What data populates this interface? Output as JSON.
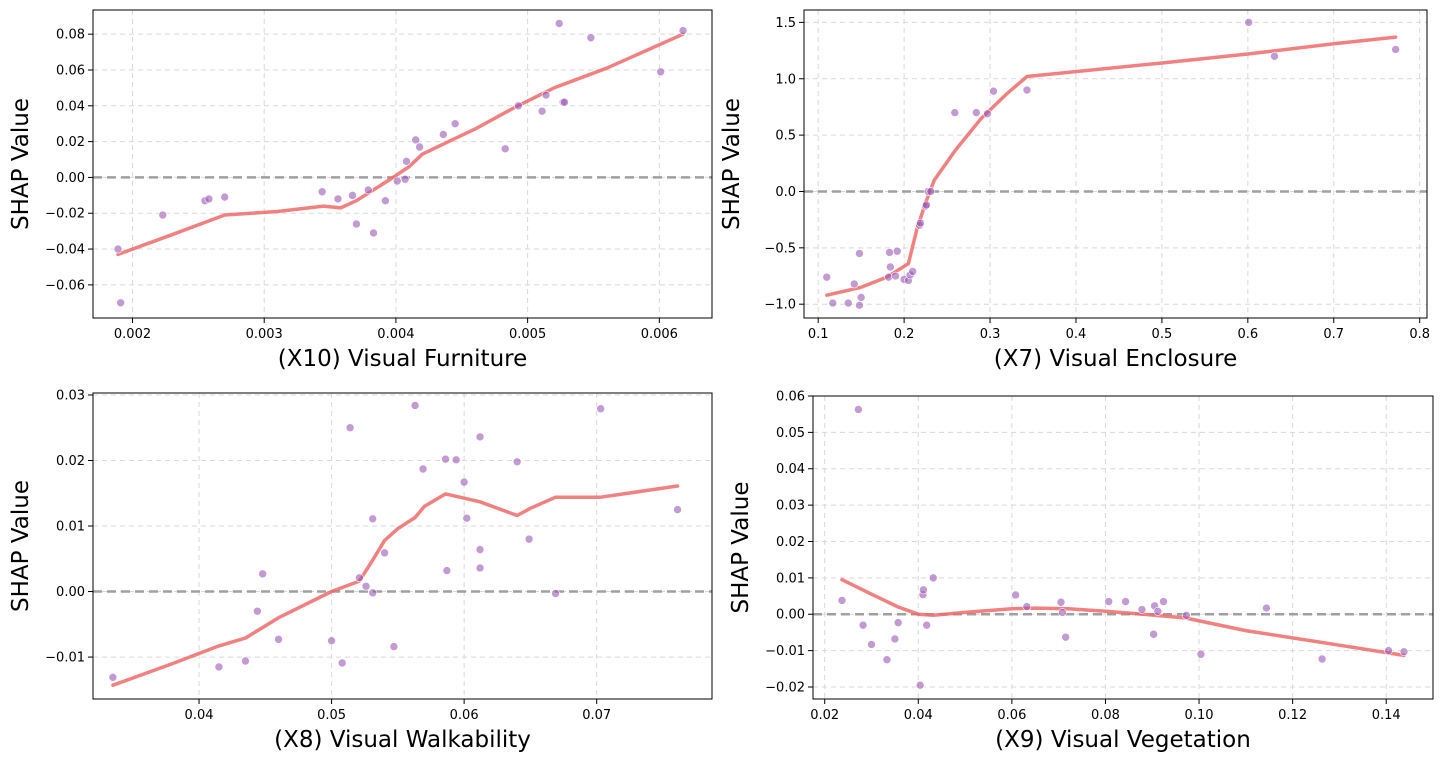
{
  "chart_data": [
    {
      "type": "scatter",
      "xlabel": "(X10) Visual Furniture",
      "ylabel": "SHAP Value",
      "xlim": [
        0.0017,
        0.0064
      ],
      "ylim": [
        -0.0785,
        0.0935
      ],
      "xticks": [
        0.002,
        0.003,
        0.004,
        0.005,
        0.006
      ],
      "xtick_labels": [
        "0.002",
        "0.003",
        "0.004",
        "0.005",
        "0.006"
      ],
      "yticks": [
        -0.06,
        -0.04,
        -0.02,
        0.0,
        0.02,
        0.04,
        0.06,
        0.08
      ],
      "ytick_labels": [
        "−0.06",
        "−0.04",
        "−0.02",
        "0.00",
        "0.02",
        "0.04",
        "0.06",
        "0.08"
      ],
      "grid": true,
      "zero_line": true,
      "points": [
        {
          "x": 0.00189,
          "y": -0.04
        },
        {
          "x": 0.00191,
          "y": -0.07
        },
        {
          "x": 0.00223,
          "y": -0.021
        },
        {
          "x": 0.00255,
          "y": -0.013
        },
        {
          "x": 0.00258,
          "y": -0.012
        },
        {
          "x": 0.0027,
          "y": -0.011
        },
        {
          "x": 0.00344,
          "y": -0.008
        },
        {
          "x": 0.00356,
          "y": -0.012
        },
        {
          "x": 0.00367,
          "y": -0.01
        },
        {
          "x": 0.0037,
          "y": -0.026
        },
        {
          "x": 0.00379,
          "y": -0.007
        },
        {
          "x": 0.00383,
          "y": -0.031
        },
        {
          "x": 0.00392,
          "y": -0.013
        },
        {
          "x": 0.00401,
          "y": -0.002
        },
        {
          "x": 0.00407,
          "y": -0.001
        },
        {
          "x": 0.00408,
          "y": 0.009
        },
        {
          "x": 0.00415,
          "y": 0.021
        },
        {
          "x": 0.00418,
          "y": 0.017
        },
        {
          "x": 0.00436,
          "y": 0.024
        },
        {
          "x": 0.00445,
          "y": 0.03
        },
        {
          "x": 0.00483,
          "y": 0.016
        },
        {
          "x": 0.00493,
          "y": 0.04
        },
        {
          "x": 0.00511,
          "y": 0.037
        },
        {
          "x": 0.00514,
          "y": 0.046
        },
        {
          "x": 0.00524,
          "y": 0.086
        },
        {
          "x": 0.00527,
          "y": 0.042
        },
        {
          "x": 0.00528,
          "y": 0.042
        },
        {
          "x": 0.00548,
          "y": 0.078
        },
        {
          "x": 0.00601,
          "y": 0.059
        },
        {
          "x": 0.00618,
          "y": 0.082
        }
      ],
      "trend": [
        {
          "x": 0.00189,
          "y": -0.043
        },
        {
          "x": 0.0023,
          "y": -0.032
        },
        {
          "x": 0.0027,
          "y": -0.021
        },
        {
          "x": 0.0031,
          "y": -0.019
        },
        {
          "x": 0.00345,
          "y": -0.016
        },
        {
          "x": 0.00358,
          "y": -0.017
        },
        {
          "x": 0.0037,
          "y": -0.013
        },
        {
          "x": 0.00385,
          "y": -0.006
        },
        {
          "x": 0.004,
          "y": 0.001
        },
        {
          "x": 0.0041,
          "y": 0.006
        },
        {
          "x": 0.0042,
          "y": 0.013
        },
        {
          "x": 0.0044,
          "y": 0.02
        },
        {
          "x": 0.0046,
          "y": 0.027
        },
        {
          "x": 0.0049,
          "y": 0.039
        },
        {
          "x": 0.0052,
          "y": 0.05
        },
        {
          "x": 0.0056,
          "y": 0.061
        },
        {
          "x": 0.00618,
          "y": 0.08
        }
      ]
    },
    {
      "type": "scatter",
      "xlabel": "(X7) Visual Enclosure",
      "ylabel": "SHAP Value",
      "xlim": [
        0.0835,
        0.8085
      ],
      "ylim": [
        -1.1225,
        1.61
      ],
      "xticks": [
        0.1,
        0.2,
        0.3,
        0.4,
        0.5,
        0.6,
        0.7,
        0.8
      ],
      "xtick_labels": [
        "0.1",
        "0.2",
        "0.3",
        "0.4",
        "0.5",
        "0.6",
        "0.7",
        "0.8"
      ],
      "yticks": [
        -1.0,
        -0.5,
        0.0,
        0.5,
        1.0,
        1.5
      ],
      "ytick_labels": [
        "−1.0",
        "−0.5",
        "0.0",
        "0.5",
        "1.0",
        "1.5"
      ],
      "grid": true,
      "zero_line": true,
      "points": [
        {
          "x": 0.11,
          "y": -0.76
        },
        {
          "x": 0.117,
          "y": -0.99
        },
        {
          "x": 0.135,
          "y": -0.99
        },
        {
          "x": 0.142,
          "y": -0.82
        },
        {
          "x": 0.148,
          "y": -1.01
        },
        {
          "x": 0.148,
          "y": -0.55
        },
        {
          "x": 0.15,
          "y": -0.94
        },
        {
          "x": 0.182,
          "y": -0.76
        },
        {
          "x": 0.183,
          "y": -0.54
        },
        {
          "x": 0.184,
          "y": -0.67
        },
        {
          "x": 0.19,
          "y": -0.75
        },
        {
          "x": 0.192,
          "y": -0.53
        },
        {
          "x": 0.2,
          "y": -0.78
        },
        {
          "x": 0.205,
          "y": -0.79
        },
        {
          "x": 0.207,
          "y": -0.74
        },
        {
          "x": 0.21,
          "y": -0.71
        },
        {
          "x": 0.218,
          "y": -0.3
        },
        {
          "x": 0.219,
          "y": -0.28
        },
        {
          "x": 0.225,
          "y": -0.13
        },
        {
          "x": 0.226,
          "y": -0.12
        },
        {
          "x": 0.228,
          "y": 0.0
        },
        {
          "x": 0.231,
          "y": 0.0
        },
        {
          "x": 0.259,
          "y": 0.7
        },
        {
          "x": 0.284,
          "y": 0.7
        },
        {
          "x": 0.297,
          "y": 0.69
        },
        {
          "x": 0.304,
          "y": 0.89
        },
        {
          "x": 0.343,
          "y": 0.9
        },
        {
          "x": 0.601,
          "y": 1.5
        },
        {
          "x": 0.631,
          "y": 1.2
        },
        {
          "x": 0.772,
          "y": 1.26
        }
      ],
      "trend": [
        {
          "x": 0.11,
          "y": -0.92
        },
        {
          "x": 0.15,
          "y": -0.85
        },
        {
          "x": 0.18,
          "y": -0.76
        },
        {
          "x": 0.205,
          "y": -0.64
        },
        {
          "x": 0.215,
          "y": -0.33
        },
        {
          "x": 0.225,
          "y": -0.1
        },
        {
          "x": 0.235,
          "y": 0.1
        },
        {
          "x": 0.26,
          "y": 0.37
        },
        {
          "x": 0.29,
          "y": 0.65
        },
        {
          "x": 0.32,
          "y": 0.87
        },
        {
          "x": 0.343,
          "y": 1.02
        },
        {
          "x": 0.5,
          "y": 1.14
        },
        {
          "x": 0.6,
          "y": 1.22
        },
        {
          "x": 0.7,
          "y": 1.31
        },
        {
          "x": 0.772,
          "y": 1.37
        }
      ]
    },
    {
      "type": "scatter",
      "xlabel": "(X8) Visual Walkability",
      "ylabel": "SHAP Value",
      "xlim": [
        0.032,
        0.0787
      ],
      "ylim": [
        -0.0164,
        0.0303
      ],
      "xticks": [
        0.04,
        0.05,
        0.06,
        0.07
      ],
      "xtick_labels": [
        "0.04",
        "0.05",
        "0.06",
        "0.07"
      ],
      "yticks": [
        -0.01,
        0.0,
        0.01,
        0.02,
        0.03
      ],
      "ytick_labels": [
        "−0.01",
        "0.00",
        "0.01",
        "0.02",
        "0.03"
      ],
      "grid": true,
      "zero_line": true,
      "points": [
        {
          "x": 0.0335,
          "y": -0.0131
        },
        {
          "x": 0.0415,
          "y": -0.0115
        },
        {
          "x": 0.0435,
          "y": -0.0106
        },
        {
          "x": 0.0444,
          "y": -0.003
        },
        {
          "x": 0.0448,
          "y": 0.0027
        },
        {
          "x": 0.046,
          "y": -0.0073
        },
        {
          "x": 0.05,
          "y": -0.0075
        },
        {
          "x": 0.0508,
          "y": -0.0109
        },
        {
          "x": 0.0514,
          "y": 0.025
        },
        {
          "x": 0.0521,
          "y": 0.0021
        },
        {
          "x": 0.0526,
          "y": 0.0008
        },
        {
          "x": 0.0531,
          "y": -0.0002
        },
        {
          "x": 0.0531,
          "y": 0.0111
        },
        {
          "x": 0.054,
          "y": 0.0059
        },
        {
          "x": 0.0547,
          "y": -0.0084
        },
        {
          "x": 0.0563,
          "y": 0.0284
        },
        {
          "x": 0.0569,
          "y": 0.0187
        },
        {
          "x": 0.0586,
          "y": 0.0202
        },
        {
          "x": 0.0587,
          "y": 0.0032
        },
        {
          "x": 0.0594,
          "y": 0.0201
        },
        {
          "x": 0.06,
          "y": 0.0167
        },
        {
          "x": 0.0602,
          "y": 0.0112
        },
        {
          "x": 0.0612,
          "y": 0.0236
        },
        {
          "x": 0.0612,
          "y": 0.0064
        },
        {
          "x": 0.0612,
          "y": 0.0036
        },
        {
          "x": 0.064,
          "y": 0.0198
        },
        {
          "x": 0.0649,
          "y": 0.008
        },
        {
          "x": 0.0669,
          "y": -0.0003
        },
        {
          "x": 0.0703,
          "y": 0.0279
        },
        {
          "x": 0.0761,
          "y": 0.0125
        }
      ],
      "trend": [
        {
          "x": 0.0335,
          "y": -0.0143
        },
        {
          "x": 0.038,
          "y": -0.011
        },
        {
          "x": 0.0415,
          "y": -0.0083
        },
        {
          "x": 0.0435,
          "y": -0.0071
        },
        {
          "x": 0.046,
          "y": -0.004
        },
        {
          "x": 0.05,
          "y": 0.0
        },
        {
          "x": 0.0521,
          "y": 0.0016
        },
        {
          "x": 0.0531,
          "y": 0.0048
        },
        {
          "x": 0.054,
          "y": 0.0078
        },
        {
          "x": 0.055,
          "y": 0.0096
        },
        {
          "x": 0.0563,
          "y": 0.0113
        },
        {
          "x": 0.057,
          "y": 0.013
        },
        {
          "x": 0.0586,
          "y": 0.0149
        },
        {
          "x": 0.0612,
          "y": 0.0137
        },
        {
          "x": 0.064,
          "y": 0.0116
        },
        {
          "x": 0.065,
          "y": 0.0127
        },
        {
          "x": 0.0669,
          "y": 0.0144
        },
        {
          "x": 0.0703,
          "y": 0.0144
        },
        {
          "x": 0.0761,
          "y": 0.0161
        }
      ]
    },
    {
      "type": "scatter",
      "xlabel": "(X9) Visual Vegetation",
      "ylabel": "SHAP Value",
      "xlim": [
        0.0175,
        0.15
      ],
      "ylim": [
        -0.0233,
        0.06
      ],
      "xticks": [
        0.02,
        0.04,
        0.06,
        0.08,
        0.1,
        0.12,
        0.14
      ],
      "xtick_labels": [
        "0.02",
        "0.04",
        "0.06",
        "0.08",
        "0.10",
        "0.12",
        "0.14"
      ],
      "yticks": [
        -0.02,
        -0.01,
        0.0,
        0.01,
        0.02,
        0.03,
        0.04,
        0.05,
        0.06
      ],
      "ytick_labels": [
        "−0.02",
        "−0.01",
        "0.00",
        "0.01",
        "0.02",
        "0.03",
        "0.04",
        "0.05",
        "0.06"
      ],
      "grid": true,
      "zero_line": true,
      "points": [
        {
          "x": 0.0237,
          "y": 0.0038
        },
        {
          "x": 0.0272,
          "y": 0.0563
        },
        {
          "x": 0.0282,
          "y": -0.003
        },
        {
          "x": 0.03,
          "y": -0.0083
        },
        {
          "x": 0.0333,
          "y": -0.0125
        },
        {
          "x": 0.035,
          "y": -0.0068
        },
        {
          "x": 0.0357,
          "y": -0.0023
        },
        {
          "x": 0.0404,
          "y": -0.0195
        },
        {
          "x": 0.041,
          "y": 0.0054
        },
        {
          "x": 0.0411,
          "y": 0.0067
        },
        {
          "x": 0.0418,
          "y": -0.003
        },
        {
          "x": 0.0432,
          "y": 0.01
        },
        {
          "x": 0.0608,
          "y": 0.0053
        },
        {
          "x": 0.0632,
          "y": 0.0021
        },
        {
          "x": 0.0705,
          "y": 0.0033
        },
        {
          "x": 0.0708,
          "y": 0.0005
        },
        {
          "x": 0.0715,
          "y": -0.0063
        },
        {
          "x": 0.0807,
          "y": 0.0035
        },
        {
          "x": 0.0843,
          "y": 0.0035
        },
        {
          "x": 0.0878,
          "y": 0.0013
        },
        {
          "x": 0.0903,
          "y": -0.0055
        },
        {
          "x": 0.0905,
          "y": 0.0023
        },
        {
          "x": 0.0912,
          "y": 0.0008
        },
        {
          "x": 0.0924,
          "y": 0.0035
        },
        {
          "x": 0.0973,
          "y": -0.0003
        },
        {
          "x": 0.1004,
          "y": -0.011
        },
        {
          "x": 0.1144,
          "y": 0.0017
        },
        {
          "x": 0.1263,
          "y": -0.0123
        },
        {
          "x": 0.1405,
          "y": -0.01
        },
        {
          "x": 0.1438,
          "y": -0.0103
        }
      ],
      "trend": [
        {
          "x": 0.0237,
          "y": 0.0095
        },
        {
          "x": 0.03,
          "y": 0.0055
        },
        {
          "x": 0.0357,
          "y": 0.002
        },
        {
          "x": 0.04,
          "y": 0.0
        },
        {
          "x": 0.0432,
          "y": -0.0003
        },
        {
          "x": 0.05,
          "y": 0.0005
        },
        {
          "x": 0.06,
          "y": 0.0015
        },
        {
          "x": 0.065,
          "y": 0.0017
        },
        {
          "x": 0.072,
          "y": 0.0015
        },
        {
          "x": 0.08,
          "y": 0.0008
        },
        {
          "x": 0.088,
          "y": 0.0
        },
        {
          "x": 0.097,
          "y": -0.001
        },
        {
          "x": 0.11,
          "y": -0.0045
        },
        {
          "x": 0.12,
          "y": -0.0065
        },
        {
          "x": 0.13,
          "y": -0.0085
        },
        {
          "x": 0.1438,
          "y": -0.0113
        }
      ]
    }
  ],
  "colors": {
    "point": "#9b59b6",
    "trend": "#ef6b6b",
    "zero_line": "#a0a0a0",
    "grid": "#d9d9d9"
  }
}
